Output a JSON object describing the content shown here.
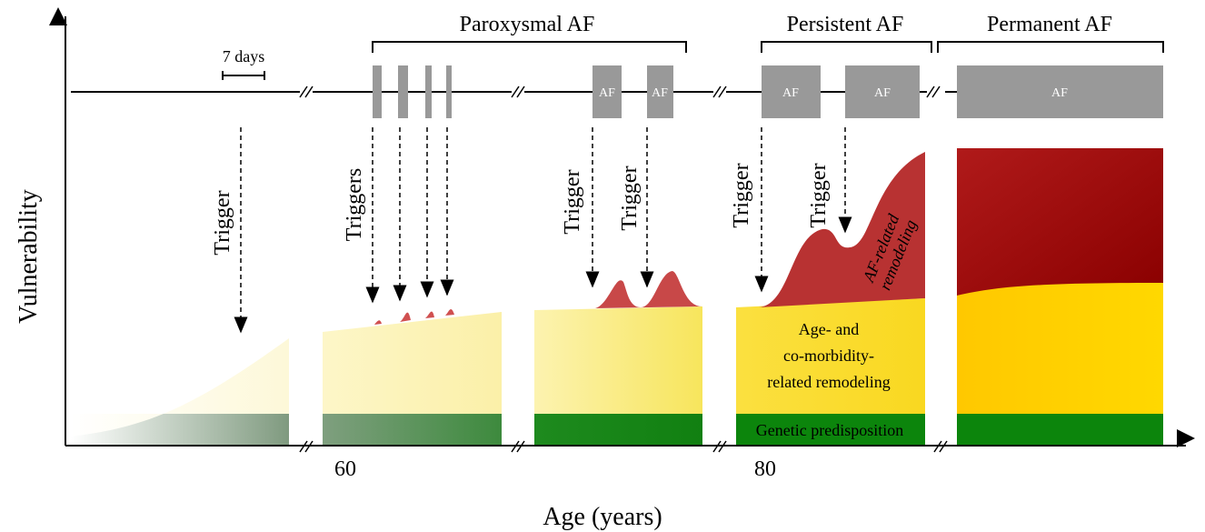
{
  "phases": {
    "paroxysmal": "Paroxysmal AF",
    "persistent": "Persistent AF",
    "permanent": "Permanent AF"
  },
  "scale_label": "7 days",
  "af_boxes": [
    "AF",
    "AF",
    "AF",
    "AF",
    "AF"
  ],
  "triggers": {
    "first": "Trigger",
    "group": "Triggers",
    "third": "Trigger",
    "fourth": "Trigger",
    "fifth": "Trigger",
    "sixth": "Trigger"
  },
  "axes": {
    "y_label": "Vulnerability",
    "x_label": "Age (years)",
    "x_ticks": [
      "60",
      "80"
    ]
  },
  "layers": {
    "af_remodeling": [
      "AF-related",
      "remodeling"
    ],
    "age_remodeling": [
      "Age- and",
      "co-morbidity-",
      "related remodeling"
    ],
    "genetic": "Genetic predisposition"
  }
}
